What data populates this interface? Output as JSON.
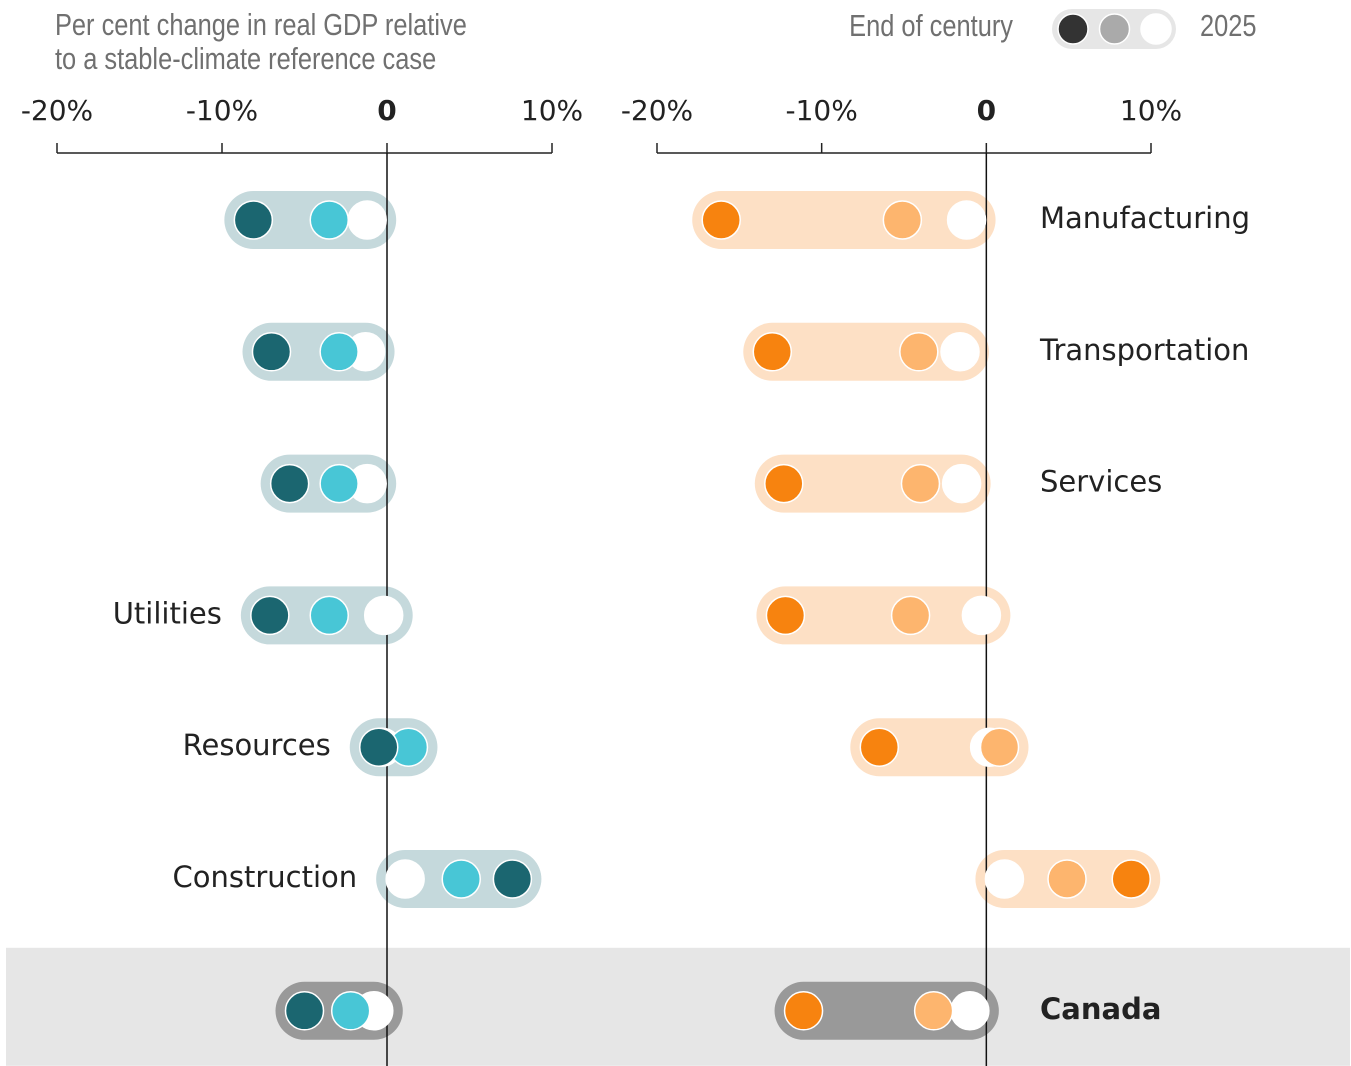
{
  "title": [
    "Per cent change in real GDP relative",
    "to a stable-climate reference case"
  ],
  "legend": {
    "start": "End of century",
    "end": "2025",
    "colors": [
      "#333333",
      "#aaaaaa",
      "#ffffff"
    ],
    "pill_color": "#e6e6e6"
  },
  "categories": [
    "Manufacturing",
    "Transportation",
    "Services",
    "Utilities",
    "Resources",
    "Construction",
    "Canada"
  ],
  "highlight_index": 6,
  "highlight_band_color": "#e6e6e6",
  "highlight_pill_color": "#999999",
  "chart_data": [
    {
      "type": "dot",
      "xlim": [
        -20,
        10
      ],
      "xticks": [
        {
          "value": -20,
          "label": "-20%"
        },
        {
          "value": -10,
          "label": "-10%"
        },
        0,
        {
          "value": 10,
          "label": "10%"
        }
      ],
      "pill_color": "#c5d9dc",
      "series": [
        {
          "color": "#ffffff",
          "values": [
            -1.2,
            -1.3,
            -1.2,
            -0.2,
            -0.3,
            1.1,
            -0.8
          ]
        },
        {
          "color": "#48c6d6",
          "values": [
            -3.5,
            -2.9,
            -2.9,
            -3.5,
            1.3,
            4.5,
            -2.2
          ]
        },
        {
          "color": "#1b6670",
          "values": [
            -8.1,
            -7.0,
            -5.9,
            -7.1,
            -0.5,
            7.6,
            -5.0
          ]
        }
      ]
    },
    {
      "type": "dot",
      "xlim": [
        -20,
        10
      ],
      "xticks": [
        {
          "value": -20,
          "label": "-20%"
        },
        {
          "value": -10,
          "label": "-10%"
        },
        0,
        {
          "value": 10,
          "label": "10%"
        }
      ],
      "pill_color": "#fde0c5",
      "series": [
        {
          "color": "#ffffff",
          "values": [
            -1.2,
            -1.6,
            -1.5,
            -0.3,
            0.2,
            1.1,
            -1.0
          ]
        },
        {
          "color": "#fdb56e",
          "values": [
            -5.1,
            -4.1,
            -4.0,
            -4.6,
            0.8,
            4.9,
            -3.2
          ]
        },
        {
          "color": "#f7830f",
          "values": [
            -16.1,
            -13.0,
            -12.3,
            -12.2,
            -6.5,
            8.8,
            -11.1
          ]
        }
      ]
    }
  ]
}
